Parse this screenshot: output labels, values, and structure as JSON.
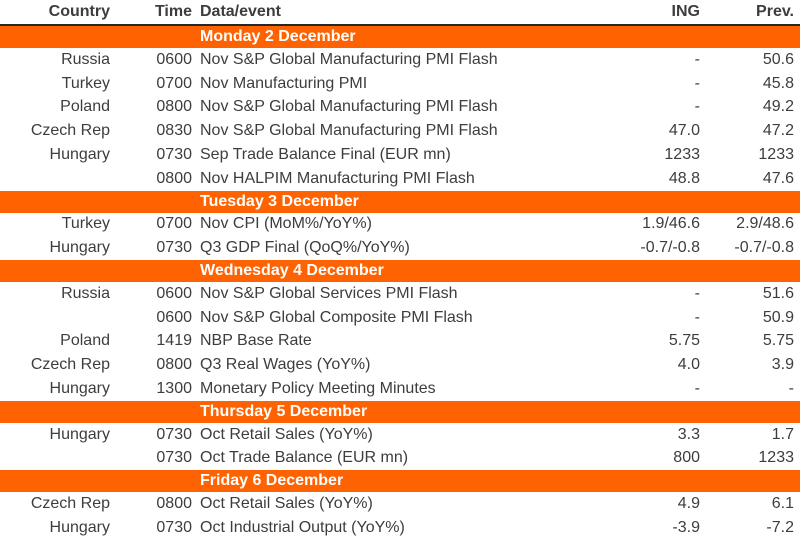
{
  "table": {
    "accent_color": "#ff6200",
    "band_text_color": "#ffffff",
    "text_color": "#3d3d3d",
    "header": {
      "country": "Country",
      "time": "Time",
      "event": "Data/event",
      "ing": "ING",
      "prev": "Prev."
    },
    "sections": [
      {
        "title": "Monday 2 December",
        "rows": [
          {
            "country": "Russia",
            "time": "0600",
            "event": "Nov S&P Global Manufacturing PMI Flash",
            "ing": "-",
            "prev": "50.6"
          },
          {
            "country": "Turkey",
            "time": "0700",
            "event": "Nov Manufacturing PMI",
            "ing": "-",
            "prev": "45.8"
          },
          {
            "country": "Poland",
            "time": "0800",
            "event": "Nov S&P Global Manufacturing PMI Flash",
            "ing": "-",
            "prev": "49.2"
          },
          {
            "country": "Czech Rep",
            "time": "0830",
            "event": "Nov S&P Global Manufacturing PMI Flash",
            "ing": "47.0",
            "prev": "47.2"
          },
          {
            "country": "Hungary",
            "time": "0730",
            "event": "Sep Trade Balance Final (EUR mn)",
            "ing": "1233",
            "prev": "1233"
          },
          {
            "country": "",
            "time": "0800",
            "event": "Nov HALPIM Manufacturing PMI Flash",
            "ing": "48.8",
            "prev": "47.6"
          }
        ]
      },
      {
        "title": "Tuesday 3 December",
        "rows": [
          {
            "country": "Turkey",
            "time": "0700",
            "event": "Nov CPI (MoM%/YoY%)",
            "ing": "1.9/46.6",
            "prev": "2.9/48.6"
          },
          {
            "country": "Hungary",
            "time": "0730",
            "event": "Q3 GDP Final (QoQ%/YoY%)",
            "ing": "-0.7/-0.8",
            "prev": "-0.7/-0.8"
          }
        ]
      },
      {
        "title": "Wednesday 4 December",
        "rows": [
          {
            "country": "Russia",
            "time": "0600",
            "event": "Nov S&P Global Services PMI Flash",
            "ing": "-",
            "prev": "51.6"
          },
          {
            "country": "",
            "time": "0600",
            "event": "Nov S&P Global Composite PMI Flash",
            "ing": "-",
            "prev": "50.9"
          },
          {
            "country": "Poland",
            "time": "1419",
            "event": "NBP Base Rate",
            "ing": "5.75",
            "prev": "5.75"
          },
          {
            "country": "Czech Rep",
            "time": "0800",
            "event": "Q3 Real Wages (YoY%)",
            "ing": "4.0",
            "prev": "3.9"
          },
          {
            "country": "Hungary",
            "time": "1300",
            "event": "Monetary Policy Meeting Minutes",
            "ing": "-",
            "prev": "-"
          }
        ]
      },
      {
        "title": "Thursday 5 December",
        "rows": [
          {
            "country": "Hungary",
            "time": "0730",
            "event": "Oct Retail Sales (YoY%)",
            "ing": "3.3",
            "prev": "1.7"
          },
          {
            "country": "",
            "time": "0730",
            "event": "Oct Trade Balance (EUR mn)",
            "ing": "800",
            "prev": "1233"
          }
        ]
      },
      {
        "title": "Friday 6 December",
        "rows": [
          {
            "country": "Czech Rep",
            "time": "0800",
            "event": "Oct Retail Sales (YoY%)",
            "ing": "4.9",
            "prev": "6.1"
          },
          {
            "country": "Hungary",
            "time": "0730",
            "event": "Oct Industrial Output (YoY%)",
            "ing": "-3.9",
            "prev": "-7.2"
          }
        ]
      }
    ]
  }
}
